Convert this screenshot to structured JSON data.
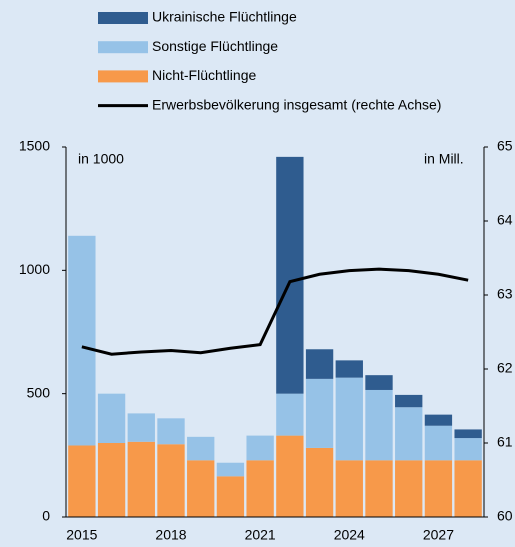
{
  "chart_data": {
    "type": "bar",
    "categories": [
      "2015",
      null,
      null,
      "2018",
      null,
      null,
      "2021",
      null,
      null,
      "2024",
      null,
      null,
      "2027",
      null
    ],
    "series": [
      {
        "name": "Ukrainische Flüchtlinge",
        "color": "#2f5c8f",
        "type": "bar",
        "values": [
          0,
          0,
          0,
          0,
          0,
          0,
          0,
          960,
          120,
          70,
          60,
          50,
          45,
          35
        ]
      },
      {
        "name": "Sonstige Flüchtlinge",
        "color": "#96c2e7",
        "type": "bar",
        "values": [
          850,
          200,
          115,
          105,
          95,
          55,
          100,
          170,
          280,
          335,
          285,
          215,
          140,
          90
        ]
      },
      {
        "name": "Nicht-Flüchtlinge",
        "color": "#f7994a",
        "type": "bar",
        "values": [
          290,
          300,
          305,
          295,
          230,
          165,
          230,
          330,
          280,
          230,
          230,
          230,
          230,
          230
        ]
      },
      {
        "name": "Erwerbsbevölkerung insgesamt (rechte Achse)",
        "color": "#000000",
        "type": "line",
        "axis": "y2",
        "values": [
          62.3,
          62.2,
          62.23,
          62.25,
          62.22,
          62.28,
          62.33,
          63.18,
          63.28,
          63.33,
          63.35,
          63.33,
          63.28,
          63.2
        ]
      }
    ],
    "ylim": [
      0,
      1500
    ],
    "yticks": [
      0,
      500,
      1000,
      1500
    ],
    "y2lim": [
      60,
      65
    ],
    "y2ticks": [
      60,
      61,
      62,
      63,
      64,
      65
    ],
    "annotations": [
      "in 1000",
      "in Mill."
    ]
  }
}
